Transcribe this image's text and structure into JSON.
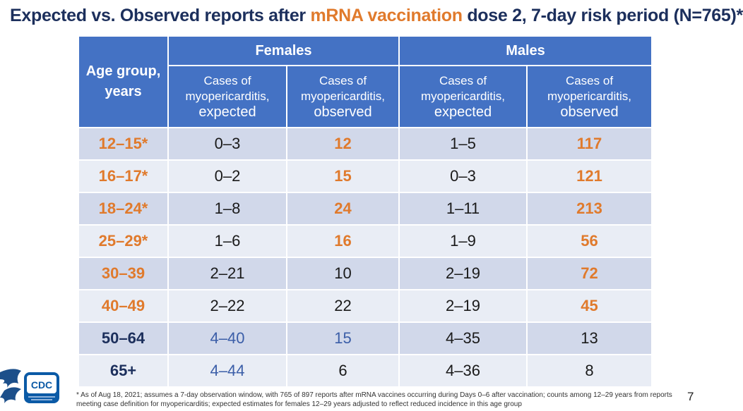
{
  "title": {
    "part1": "Expected vs. Observed reports after ",
    "highlight": "mRNA vaccination",
    "part2": " dose 2, 7-day risk period (N=765)*"
  },
  "table": {
    "age_header_line1": "Age group,",
    "age_header_line2": "years",
    "group_headers": [
      "Females",
      "Males"
    ],
    "sub_headers": [
      {
        "line1": "Cases of",
        "line2": "myopericarditis,",
        "line3": "expected"
      },
      {
        "line1": "Cases of",
        "line2": "myopericarditis,",
        "line3": "observed"
      },
      {
        "line1": "Cases of",
        "line2": "myopericarditis,",
        "line3": "expected"
      },
      {
        "line1": "Cases of",
        "line2": "myopericarditis,",
        "line3": "observed"
      }
    ],
    "rows": [
      {
        "age": "12–15*",
        "f_exp": "0–3",
        "f_obs": "12",
        "m_exp": "1–5",
        "m_obs": "117"
      },
      {
        "age": "16–17*",
        "f_exp": "0–2",
        "f_obs": "15",
        "m_exp": "0–3",
        "m_obs": "121"
      },
      {
        "age": "18–24*",
        "f_exp": "1–8",
        "f_obs": "24",
        "m_exp": "1–11",
        "m_obs": "213"
      },
      {
        "age": "25–29*",
        "f_exp": "1–6",
        "f_obs": "16",
        "m_exp": "1–9",
        "m_obs": "56"
      },
      {
        "age": "30–39",
        "f_exp": "2–21",
        "f_obs": "10",
        "m_exp": "2–19",
        "m_obs": "72"
      },
      {
        "age": "40–49",
        "f_exp": "2–22",
        "f_obs": "22",
        "m_exp": "2–19",
        "m_obs": "45"
      },
      {
        "age": "50–64",
        "f_exp": "4–40",
        "f_obs": "15",
        "m_exp": "4–35",
        "m_obs": "13"
      },
      {
        "age": "65+",
        "f_exp": "4–44",
        "f_obs": "6",
        "m_exp": "4–36",
        "m_obs": "8"
      }
    ]
  },
  "footnote": "* As of Aug 18, 2021; assumes a 7-day observation window, with 765 of 897 reports after mRNA vaccines occurring during Days 0–6 after vaccination; counts among 12–29 years from reports meeting case definition for myopericarditis; expected estimates for females 12–29 years adjusted to reflect reduced incidence in this age group",
  "page_number": "7",
  "logo": {
    "text": "CDC",
    "icon": "hhs-eagle-icon"
  },
  "colors": {
    "header_blue": "#4472c4",
    "title_navy": "#1c2f5c",
    "accent_orange": "#e07a2c",
    "row_dark": "#d1d8ea",
    "row_light": "#e9edf5"
  }
}
